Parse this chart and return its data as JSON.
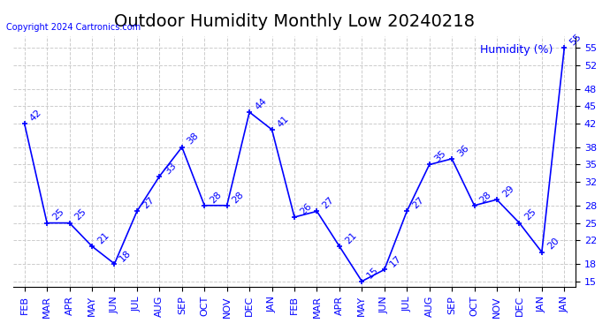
{
  "title": "Outdoor Humidity Monthly Low 20240218",
  "copyright": "Copyright 2024 Cartronics.com",
  "legend_label": "Humidity (%)",
  "x_labels": [
    "FEB",
    "MAR",
    "APR",
    "MAY",
    "JUN",
    "JUL",
    "AUG",
    "SEP",
    "OCT",
    "NOV",
    "DEC",
    "JAN",
    "FEB",
    "MAR",
    "APR",
    "MAY",
    "JUN",
    "JUL",
    "AUG",
    "SEP",
    "OCT",
    "NOV",
    "DEC",
    "JAN",
    "JAN"
  ],
  "y_values": [
    42,
    25,
    25,
    21,
    18,
    27,
    33,
    38,
    28,
    28,
    44,
    41,
    26,
    27,
    21,
    15,
    17,
    27,
    35,
    36,
    28,
    29,
    25,
    20,
    55
  ],
  "display_x_labels": [
    "FEB",
    "MAR",
    "APR",
    "MAY",
    "JUN",
    "JUL",
    "AUG",
    "SEP",
    "OCT",
    "NOV",
    "DEC",
    "JAN",
    "FEB",
    "MAR",
    "APR",
    "MAY",
    "JUN",
    "JUL",
    "AUG",
    "SEP",
    "OCT",
    "NOV",
    "DEC",
    "JAN"
  ],
  "line_color": "blue",
  "ylim": [
    14,
    57
  ],
  "yticks": [
    15,
    18,
    22,
    25,
    28,
    32,
    35,
    38,
    42,
    45,
    48,
    52,
    55
  ],
  "background_color": "#ffffff",
  "grid_color": "#cccccc",
  "title_fontsize": 14,
  "label_fontsize": 8,
  "annotation_fontsize": 8,
  "annotation_color": "blue"
}
